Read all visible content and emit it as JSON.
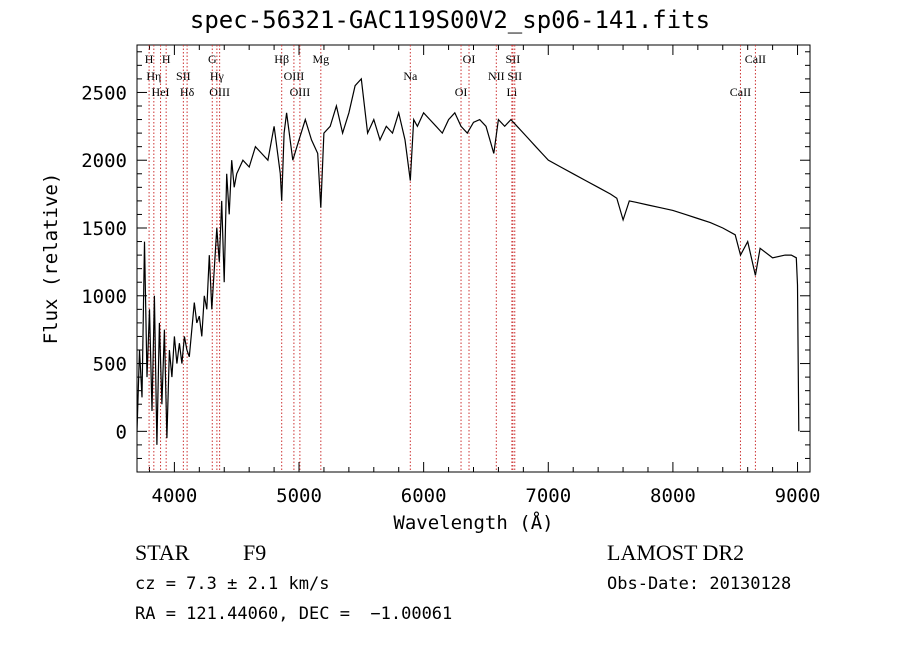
{
  "chart_data": {
    "type": "line",
    "title": "spec-56321-GAC119S00V2_sp06-141.fits",
    "xlabel": "Wavelength (Å)",
    "ylabel": "Flux (relative)",
    "xlim": [
      3700,
      9100
    ],
    "ylim": [
      -300,
      2850
    ],
    "xticks": [
      4000,
      5000,
      6000,
      7000,
      8000,
      9000
    ],
    "yticks": [
      0,
      500,
      1000,
      1500,
      2000,
      2500
    ],
    "grid": false,
    "series": [
      {
        "points": [
          [
            3700,
            0
          ],
          [
            3720,
            600
          ],
          [
            3740,
            250
          ],
          [
            3760,
            1400
          ],
          [
            3780,
            400
          ],
          [
            3800,
            900
          ],
          [
            3820,
            150
          ],
          [
            3840,
            1000
          ],
          [
            3860,
            -100
          ],
          [
            3880,
            800
          ],
          [
            3900,
            200
          ],
          [
            3920,
            750
          ],
          [
            3940,
            -50
          ],
          [
            3960,
            600
          ],
          [
            3980,
            400
          ],
          [
            4000,
            700
          ],
          [
            4020,
            500
          ],
          [
            4040,
            650
          ],
          [
            4060,
            500
          ],
          [
            4080,
            700
          ],
          [
            4100,
            600
          ],
          [
            4120,
            550
          ],
          [
            4140,
            750
          ],
          [
            4160,
            950
          ],
          [
            4180,
            800
          ],
          [
            4200,
            850
          ],
          [
            4220,
            700
          ],
          [
            4240,
            1000
          ],
          [
            4260,
            900
          ],
          [
            4280,
            1300
          ],
          [
            4300,
            900
          ],
          [
            4320,
            1200
          ],
          [
            4340,
            1500
          ],
          [
            4360,
            1250
          ],
          [
            4380,
            1700
          ],
          [
            4400,
            1100
          ],
          [
            4420,
            1900
          ],
          [
            4440,
            1600
          ],
          [
            4460,
            2000
          ],
          [
            4480,
            1800
          ],
          [
            4500,
            1900
          ],
          [
            4550,
            2000
          ],
          [
            4600,
            1950
          ],
          [
            4650,
            2100
          ],
          [
            4700,
            2050
          ],
          [
            4750,
            2000
          ],
          [
            4800,
            2250
          ],
          [
            4850,
            1900
          ],
          [
            4861,
            1700
          ],
          [
            4880,
            2200
          ],
          [
            4900,
            2350
          ],
          [
            4950,
            2000
          ],
          [
            5000,
            2150
          ],
          [
            5050,
            2300
          ],
          [
            5100,
            2150
          ],
          [
            5150,
            2050
          ],
          [
            5175,
            1650
          ],
          [
            5200,
            2200
          ],
          [
            5250,
            2250
          ],
          [
            5300,
            2400
          ],
          [
            5350,
            2200
          ],
          [
            5400,
            2350
          ],
          [
            5450,
            2550
          ],
          [
            5500,
            2600
          ],
          [
            5550,
            2200
          ],
          [
            5600,
            2300
          ],
          [
            5650,
            2150
          ],
          [
            5700,
            2250
          ],
          [
            5750,
            2200
          ],
          [
            5800,
            2350
          ],
          [
            5850,
            2150
          ],
          [
            5893,
            1850
          ],
          [
            5920,
            2300
          ],
          [
            5950,
            2250
          ],
          [
            6000,
            2350
          ],
          [
            6050,
            2300
          ],
          [
            6100,
            2250
          ],
          [
            6150,
            2200
          ],
          [
            6200,
            2300
          ],
          [
            6250,
            2350
          ],
          [
            6300,
            2250
          ],
          [
            6350,
            2200
          ],
          [
            6400,
            2280
          ],
          [
            6450,
            2300
          ],
          [
            6500,
            2250
          ],
          [
            6563,
            2050
          ],
          [
            6600,
            2300
          ],
          [
            6650,
            2250
          ],
          [
            6700,
            2300
          ],
          [
            6750,
            2250
          ],
          [
            6800,
            2200
          ],
          [
            6850,
            2150
          ],
          [
            6900,
            2100
          ],
          [
            6950,
            2050
          ],
          [
            7000,
            2000
          ],
          [
            7100,
            1950
          ],
          [
            7200,
            1900
          ],
          [
            7300,
            1850
          ],
          [
            7400,
            1800
          ],
          [
            7500,
            1750
          ],
          [
            7550,
            1720
          ],
          [
            7600,
            1560
          ],
          [
            7650,
            1700
          ],
          [
            7700,
            1690
          ],
          [
            7800,
            1670
          ],
          [
            7900,
            1650
          ],
          [
            8000,
            1630
          ],
          [
            8100,
            1600
          ],
          [
            8200,
            1570
          ],
          [
            8300,
            1540
          ],
          [
            8400,
            1500
          ],
          [
            8500,
            1450
          ],
          [
            8542,
            1300
          ],
          [
            8600,
            1400
          ],
          [
            8662,
            1150
          ],
          [
            8700,
            1350
          ],
          [
            8800,
            1280
          ],
          [
            8900,
            1300
          ],
          [
            8950,
            1300
          ],
          [
            8990,
            1280
          ],
          [
            9000,
            1080
          ],
          [
            9010,
            0
          ]
        ]
      }
    ],
    "lines": [
      {
        "wavelength": 3797,
        "label": "H"
      },
      {
        "wavelength": 3835,
        "label": "Hη"
      },
      {
        "wavelength": 3889,
        "label": "HeI"
      },
      {
        "wavelength": 3934,
        "label": "H"
      },
      {
        "wavelength": 4072,
        "label": "SII"
      },
      {
        "wavelength": 4102,
        "label": "Hδ"
      },
      {
        "wavelength": 4304,
        "label": "G"
      },
      {
        "wavelength": 4341,
        "label": "Hγ"
      },
      {
        "wavelength": 4363,
        "label": "OIII"
      },
      {
        "wavelength": 4861,
        "label": "Hβ"
      },
      {
        "wavelength": 4959,
        "label": "OIII"
      },
      {
        "wavelength": 5007,
        "label": "OIII"
      },
      {
        "wavelength": 5175,
        "label": "Mg"
      },
      {
        "wavelength": 5893,
        "label": "Na"
      },
      {
        "wavelength": 6300,
        "label": "OI"
      },
      {
        "wavelength": 6364,
        "label": "OI"
      },
      {
        "wavelength": 6583,
        "label": "NII"
      },
      {
        "wavelength": 6708,
        "label": "Li"
      },
      {
        "wavelength": 6716,
        "label": "SII"
      },
      {
        "wavelength": 6731,
        "label": "SII"
      },
      {
        "wavelength": 8542,
        "label": "CaII"
      },
      {
        "wavelength": 8662,
        "label": "CaII"
      }
    ],
    "colors": {
      "spectrum": "#000000",
      "line_markers": "#cc3333"
    }
  },
  "footer": {
    "object_class": "STAR",
    "subclass": "F9",
    "redshift": "cz = 7.3 ± 2.1 km/s",
    "coords": "RA = 121.44060, DEC =  −1.00061",
    "survey": "LAMOST DR2",
    "obs_date": "Obs-Date: 20130128"
  }
}
